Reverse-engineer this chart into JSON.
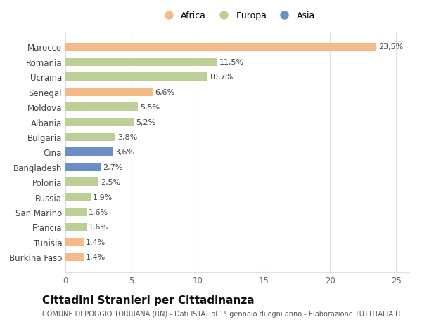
{
  "countries": [
    "Marocco",
    "Romania",
    "Ucraina",
    "Senegal",
    "Moldova",
    "Albania",
    "Bulgaria",
    "Cina",
    "Bangladesh",
    "Polonia",
    "Russia",
    "San Marino",
    "Francia",
    "Tunisia",
    "Burkina Faso"
  ],
  "values": [
    23.5,
    11.5,
    10.7,
    6.6,
    5.5,
    5.2,
    3.8,
    3.6,
    2.7,
    2.5,
    1.9,
    1.6,
    1.6,
    1.4,
    1.4
  ],
  "labels": [
    "23,5%",
    "11,5%",
    "10,7%",
    "6,6%",
    "5,5%",
    "5,2%",
    "3,8%",
    "3,6%",
    "2,7%",
    "2,5%",
    "1,9%",
    "1,6%",
    "1,6%",
    "1,4%",
    "1,4%"
  ],
  "continents": [
    "Africa",
    "Europa",
    "Europa",
    "Africa",
    "Europa",
    "Europa",
    "Europa",
    "Asia",
    "Asia",
    "Europa",
    "Europa",
    "Europa",
    "Europa",
    "Africa",
    "Africa"
  ],
  "colors": {
    "Africa": "#F5BA85",
    "Europa": "#BBCF96",
    "Asia": "#6B8FC4"
  },
  "xlim": [
    0,
    26
  ],
  "xticks": [
    0,
    5,
    10,
    15,
    20,
    25
  ],
  "title": "Cittadini Stranieri per Cittadinanza",
  "subtitle": "COMUNE DI POGGIO TORRIANA (RN) - Dati ISTAT al 1° gennaio di ogni anno - Elaborazione TUTTITALIA.IT",
  "bar_height": 0.55,
  "background_color": "#ffffff",
  "grid_color": "#e0e0e0",
  "label_fontsize": 8,
  "ytick_fontsize": 8.5,
  "xtick_fontsize": 8.5,
  "title_fontsize": 11,
  "subtitle_fontsize": 7,
  "legend_fontsize": 9,
  "legend_marker_size": 120
}
